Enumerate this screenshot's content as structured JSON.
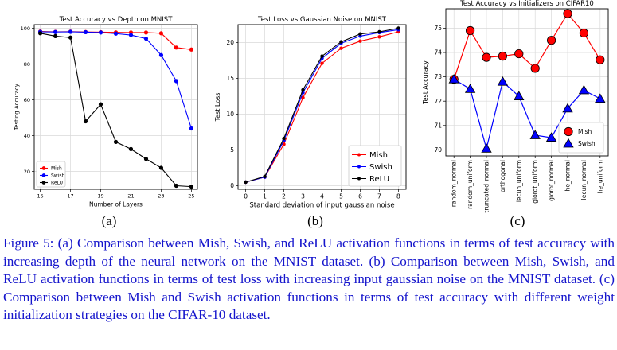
{
  "chart_data": [
    {
      "type": "line",
      "title": "Test Accuracy vs Depth on MNIST",
      "xlabel": "Number of Layers",
      "ylabel": "Testing Accuracy",
      "xlim": [
        14.6,
        25.4
      ],
      "ylim": [
        10,
        102
      ],
      "xticks": [
        15,
        17,
        19,
        21,
        23,
        25
      ],
      "yticks": [
        20,
        40,
        60,
        80,
        100
      ],
      "x": [
        15,
        16,
        17,
        18,
        19,
        20,
        21,
        22,
        23,
        24,
        25
      ],
      "series": [
        {
          "name": "Mish",
          "color": "#ff0000",
          "values": [
            98.2,
            98.0,
            98.1,
            97.9,
            97.8,
            97.7,
            97.6,
            97.6,
            97.2,
            89.2,
            88.1
          ]
        },
        {
          "name": "Swish",
          "color": "#0000ff",
          "values": [
            98.0,
            97.9,
            98.0,
            97.8,
            97.6,
            97.0,
            96.2,
            94.2,
            85.0,
            70.5,
            44.0
          ]
        },
        {
          "name": "ReLU",
          "color": "#000000",
          "values": [
            97.2,
            95.6,
            94.8,
            48.0,
            57.5,
            36.5,
            32.5,
            27.0,
            22.0,
            12.0,
            11.5
          ]
        }
      ],
      "legend": "bottom-left",
      "grid": true
    },
    {
      "type": "line",
      "title": "Test Loss vs Gaussian Noise on MNIST",
      "xlabel": "Standard deviation of input gaussian noise",
      "ylabel": "Test Loss",
      "xlim": [
        -0.4,
        8.4
      ],
      "ylim": [
        -0.5,
        22.5
      ],
      "xticks": [
        0,
        1,
        2,
        3,
        4,
        5,
        6,
        7,
        8
      ],
      "yticks": [
        0,
        5,
        10,
        15,
        20
      ],
      "x": [
        0,
        1,
        2,
        3,
        4,
        5,
        6,
        7,
        8
      ],
      "series": [
        {
          "name": "Mish",
          "color": "#ff0000",
          "values": [
            0.5,
            1.2,
            5.8,
            12.3,
            17.1,
            19.2,
            20.2,
            20.8,
            21.5
          ]
        },
        {
          "name": "Swish",
          "color": "#0000ff",
          "values": [
            0.5,
            1.2,
            6.3,
            13.0,
            17.8,
            19.9,
            20.9,
            21.4,
            21.8
          ]
        },
        {
          "name": "ReLU",
          "color": "#000000",
          "values": [
            0.5,
            1.3,
            6.6,
            13.4,
            18.1,
            20.1,
            21.2,
            21.5,
            22.0
          ]
        }
      ],
      "legend": "bottom-right",
      "grid": true
    },
    {
      "type": "line",
      "title": "Test Accuracy vs Initializers on CIFAR10",
      "xlabel": "",
      "ylabel": "Test Accuracy",
      "ylim": [
        69.75,
        75.8
      ],
      "yticks": [
        70,
        71,
        72,
        73,
        74,
        75
      ],
      "categories": [
        "random_normal",
        "random_uniform",
        "truncated_normal",
        "orthogonal",
        "lecun_uniform",
        "glorot_uniform",
        "glorot_normal",
        "he_normal",
        "lecun_normal",
        "he_uniform"
      ],
      "series": [
        {
          "name": "Mish",
          "color": "#ff0000",
          "values": [
            72.9,
            74.9,
            73.8,
            73.85,
            73.95,
            73.35,
            74.5,
            75.6,
            74.8,
            73.7
          ]
        },
        {
          "name": "Swish",
          "color": "#0000ff",
          "values": [
            72.9,
            72.5,
            70.05,
            72.8,
            72.2,
            70.6,
            70.5,
            71.7,
            72.45,
            72.1
          ]
        }
      ],
      "legend": "bottom-right",
      "grid": true
    }
  ],
  "subfigure_labels": [
    "(a)",
    "(b)",
    "(c)"
  ],
  "caption": "Figure 5: (a) Comparison between Mish, Swish, and ReLU activation functions in terms of test accuracy with increasing depth of the neural network on the MNIST dataset. (b) Comparison between Mish, Swish, and ReLU activation functions in terms of test loss with increasing input gaussian noise on the MNIST dataset. (c) Comparison between Mish and Swish activation functions in terms of test accuracy with different weight initialization strategies on the CIFAR-10 dataset."
}
